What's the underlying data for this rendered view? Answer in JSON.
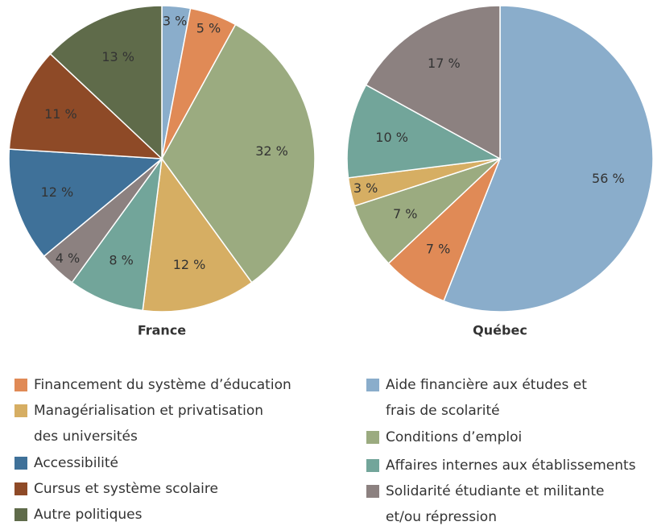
{
  "chart_data": [
    {
      "type": "pie",
      "title": "France",
      "categories": [
        "Aide financière aux études et frais de scolarité",
        "Financement du système d’éducation",
        "Conditions d’emploi",
        "Managérialisation et privatisation des universités",
        "Affaires internes aux établissements",
        "Solidarité étudiante et militante et/ou répression",
        "Accessibilité",
        "Cursus et système scolaire",
        "Autre politiques"
      ],
      "values": [
        3,
        5,
        32,
        12,
        8,
        4,
        12,
        11,
        13
      ],
      "value_labels": [
        "3 %",
        "5 %",
        "32 %",
        "12 %",
        "8 %",
        "4 %",
        "12 %",
        "11 %",
        "13 %"
      ],
      "colors": [
        "#8aadcb",
        "#e08a56",
        "#9bab80",
        "#d6ae63",
        "#72a59a",
        "#8c8180",
        "#3f7199",
        "#8e4a27",
        "#5f6b4a"
      ]
    },
    {
      "type": "pie",
      "title": "Québec",
      "categories": [
        "Aide financière aux études et frais de scolarité",
        "Financement du système d’éducation",
        "Conditions d’emploi",
        "Managérialisation et privatisation des universités",
        "Affaires internes aux établissements",
        "Solidarité étudiante et militante et/ou répression"
      ],
      "values": [
        56,
        7,
        7,
        3,
        10,
        17
      ],
      "value_labels": [
        "56 %",
        "7 %",
        "7 %",
        "3 %",
        "10 %",
        "17 %"
      ],
      "colors": [
        "#8aadcb",
        "#e08a56",
        "#9bab80",
        "#d6ae63",
        "#72a59a",
        "#8c8180"
      ]
    }
  ],
  "legend": [
    {
      "name": "Financement du système d’éducation",
      "color": "#e08a56"
    },
    {
      "name": "Managérialisation et privatisation des universités",
      "color": "#d6ae63"
    },
    {
      "name": "Accessibilité",
      "color": "#3f7199"
    },
    {
      "name": "Cursus et système scolaire",
      "color": "#8e4a27"
    },
    {
      "name": "Autre politiques",
      "color": "#5f6b4a"
    },
    {
      "name": "Aide financière aux études et frais de scolarité",
      "color": "#8aadcb"
    },
    {
      "name": "Conditions d’emploi",
      "color": "#9bab80"
    },
    {
      "name": "Affaires internes aux établissements",
      "color": "#72a59a"
    },
    {
      "name": "Solidarité étudiante et militante et/ou répression",
      "color": "#8c8180"
    }
  ]
}
